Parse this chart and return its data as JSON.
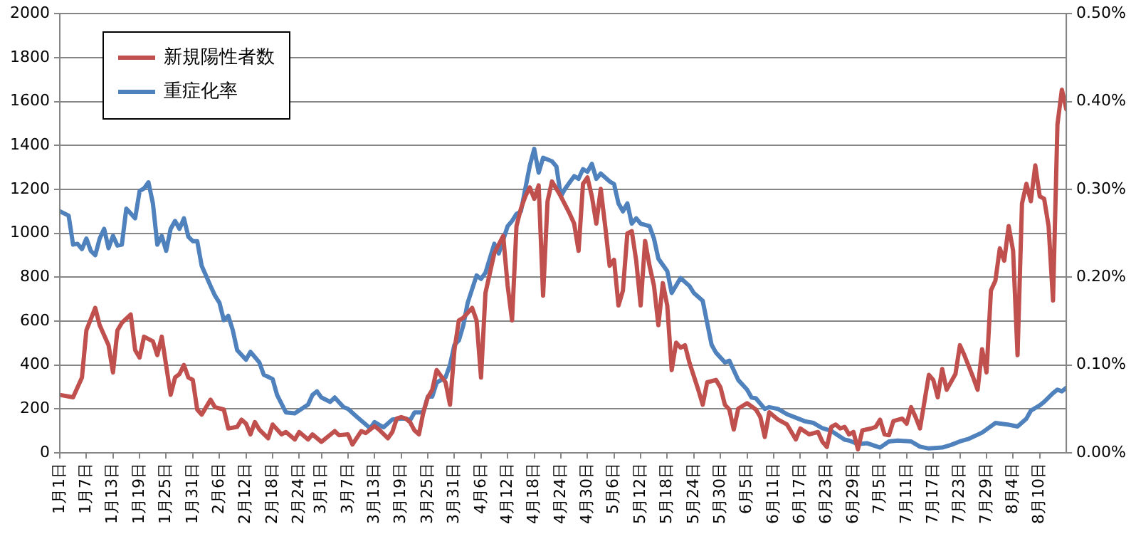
{
  "chart_data": {
    "type": "line",
    "xlim": [
      "--01-01",
      "--08-16"
    ],
    "xticks": [
      {
        "value": "--01-01",
        "label": "1月1日"
      },
      {
        "value": "--01-07",
        "label": "1月7日"
      },
      {
        "value": "--01-13",
        "label": "1月13日"
      },
      {
        "value": "--01-19",
        "label": "1月19日"
      },
      {
        "value": "--01-25",
        "label": "1月25日"
      },
      {
        "value": "--01-31",
        "label": "1月31日"
      },
      {
        "value": "--02-06",
        "label": "2月6日"
      },
      {
        "value": "--02-12",
        "label": "2月12日"
      },
      {
        "value": "--02-18",
        "label": "2月18日"
      },
      {
        "value": "--02-24",
        "label": "2月24日"
      },
      {
        "value": "--03-01",
        "label": "3月1日"
      },
      {
        "value": "--03-07",
        "label": "3月7日"
      },
      {
        "value": "--03-13",
        "label": "3月13日"
      },
      {
        "value": "--03-19",
        "label": "3月19日"
      },
      {
        "value": "--03-25",
        "label": "3月25日"
      },
      {
        "value": "--03-31",
        "label": "3月31日"
      },
      {
        "value": "--04-06",
        "label": "4月6日"
      },
      {
        "value": "--04-12",
        "label": "4月12日"
      },
      {
        "value": "--04-18",
        "label": "4月18日"
      },
      {
        "value": "--04-24",
        "label": "4月24日"
      },
      {
        "value": "--04-30",
        "label": "4月30日"
      },
      {
        "value": "--05-06",
        "label": "5月6日"
      },
      {
        "value": "--05-12",
        "label": "5月12日"
      },
      {
        "value": "--05-18",
        "label": "5月18日"
      },
      {
        "value": "--05-24",
        "label": "5月24日"
      },
      {
        "value": "--05-30",
        "label": "5月30日"
      },
      {
        "value": "--06-05",
        "label": "6月5日"
      },
      {
        "value": "--06-11",
        "label": "6月11日"
      },
      {
        "value": "--06-17",
        "label": "6月17日"
      },
      {
        "value": "--06-23",
        "label": "6月23日"
      },
      {
        "value": "--06-29",
        "label": "6月29日"
      },
      {
        "value": "--07-05",
        "label": "7月5日"
      },
      {
        "value": "--07-11",
        "label": "7月11日"
      },
      {
        "value": "--07-17",
        "label": "7月17日"
      },
      {
        "value": "--07-23",
        "label": "7月23日"
      },
      {
        "value": "--07-29",
        "label": "7月29日"
      },
      {
        "value": "--08-04",
        "label": "8月4日"
      },
      {
        "value": "--08-10",
        "label": "8月10日"
      }
    ],
    "ylim": [
      0,
      2000
    ],
    "yticks": [
      0,
      200,
      400,
      600,
      800,
      1000,
      1200,
      1400,
      1600,
      1800,
      2000
    ],
    "y2lim": [
      0,
      0.5
    ],
    "y2ticks": [
      {
        "value": 0,
        "label": "0.00%"
      },
      {
        "value": 0.1,
        "label": "0.10%"
      },
      {
        "value": 0.2,
        "label": "0.20%"
      },
      {
        "value": 0.3,
        "label": "0.30%"
      },
      {
        "value": 0.4,
        "label": "0.40%"
      },
      {
        "value": 0.5,
        "label": "0.50%"
      }
    ],
    "grid": "y",
    "legend": "top left",
    "marker": "none",
    "line_style": "solid",
    "series": [
      {
        "name": "新規陽性者数",
        "color": "#c0504d",
        "x": [
          "--01-01",
          "--01-04",
          "--01-06",
          "--01-07",
          "--01-09",
          "--01-10",
          "--01-12",
          "--01-13",
          "--01-14",
          "--01-15",
          "--01-17",
          "--01-18",
          "--01-19",
          "--01-20",
          "--01-22",
          "--01-23",
          "--01-24",
          "--01-26",
          "--01-27",
          "--01-28",
          "--01-29",
          "--01-30",
          "--01-31",
          "--02-01",
          "--02-02",
          "--02-04",
          "--02-05",
          "--02-07",
          "--02-08",
          "--02-10",
          "--02-11",
          "--02-12",
          "--02-13",
          "--02-14",
          "--02-15",
          "--02-17",
          "--02-18",
          "--02-20",
          "--02-21",
          "--02-23",
          "--02-24",
          "--02-26",
          "--02-27",
          "--03-01",
          "--03-04",
          "--03-05",
          "--03-07",
          "--03-08",
          "--03-10",
          "--03-11",
          "--03-13",
          "--03-14",
          "--03-16",
          "--03-17",
          "--03-18",
          "--03-19",
          "--03-20",
          "--03-21",
          "--03-22",
          "--03-23",
          "--03-24",
          "--03-25",
          "--03-26",
          "--03-27",
          "--03-29",
          "--03-30",
          "--03-31",
          "--04-01",
          "--04-02",
          "--04-04",
          "--04-05",
          "--04-06",
          "--04-07",
          "--04-09",
          "--04-11",
          "--04-12",
          "--04-13",
          "--04-14",
          "--04-15",
          "--04-16",
          "--04-17",
          "--04-18",
          "--04-19",
          "--04-20",
          "--04-21",
          "--04-22",
          "--04-24",
          "--04-26",
          "--04-27",
          "--04-28",
          "--04-29",
          "--04-30",
          "--05-01",
          "--05-02",
          "--05-03",
          "--05-04",
          "--05-05",
          "--05-06",
          "--05-07",
          "--05-08",
          "--05-09",
          "--05-10",
          "--05-11",
          "--05-12",
          "--05-13",
          "--05-14",
          "--05-15",
          "--05-16",
          "--05-17",
          "--05-18",
          "--05-19",
          "--05-20",
          "--05-21",
          "--05-22",
          "--05-23",
          "--05-25",
          "--05-26",
          "--05-27",
          "--05-29",
          "--05-30",
          "--05-31",
          "--06-01",
          "--06-02",
          "--06-03",
          "--06-05",
          "--06-07",
          "--06-08",
          "--06-09",
          "--06-10",
          "--06-12",
          "--06-14",
          "--06-16",
          "--06-17",
          "--06-19",
          "--06-21",
          "--06-22",
          "--06-23",
          "--06-24",
          "--06-25",
          "--06-26",
          "--06-27",
          "--06-28",
          "--06-29",
          "--06-30",
          "--07-01",
          "--07-03",
          "--07-04",
          "--07-05",
          "--07-06",
          "--07-07",
          "--07-08",
          "--07-10",
          "--07-11",
          "--07-12",
          "--07-13",
          "--07-14",
          "--07-16",
          "--07-17",
          "--07-18",
          "--07-19",
          "--07-20",
          "--07-22",
          "--07-23",
          "--07-24",
          "--07-26",
          "--07-27",
          "--07-28",
          "--07-29",
          "--07-30",
          "--07-31",
          "--08-01",
          "--08-02",
          "--08-03",
          "--08-04",
          "--08-05",
          "--08-06",
          "--08-07",
          "--08-08",
          "--08-09",
          "--08-10",
          "--08-11",
          "--08-12",
          "--08-13",
          "--08-14",
          "--08-15",
          "--08-16"
        ],
        "values": [
          264,
          253,
          343,
          558,
          660,
          581,
          490,
          366,
          558,
          592,
          630,
          468,
          434,
          529,
          508,
          445,
          529,
          264,
          343,
          359,
          400,
          343,
          332,
          197,
          174,
          242,
          208,
          197,
          111,
          118,
          151,
          133,
          84,
          140,
          106,
          66,
          129,
          84,
          95,
          61,
          95,
          61,
          84,
          50,
          99,
          80,
          84,
          38,
          99,
          90,
          122,
          106,
          66,
          95,
          156,
          163,
          156,
          140,
          102,
          84,
          185,
          253,
          287,
          377,
          321,
          219,
          468,
          603,
          615,
          660,
          603,
          343,
          728,
          909,
          988,
          762,
          603,
          1033,
          1112,
          1168,
          1209,
          1157,
          1218,
          716,
          1146,
          1236,
          1168,
          1089,
          1044,
          920,
          1225,
          1254,
          1168,
          1044,
          1202,
          1033,
          852,
          879,
          671,
          739,
          999,
          1010,
          875,
          671,
          965,
          852,
          762,
          581,
          773,
          671,
          377,
          502,
          479,
          490,
          411,
          287,
          219,
          321,
          332,
          298,
          219,
          197,
          106,
          201,
          226,
          197,
          163,
          72,
          185,
          151,
          129,
          61,
          111,
          84,
          95,
          50,
          27,
          118,
          129,
          111,
          118,
          84,
          95,
          16,
          102,
          111,
          118,
          151,
          84,
          80,
          145,
          156,
          133,
          208,
          163,
          111,
          355,
          332,
          253,
          382,
          287,
          359,
          490,
          445,
          343,
          287,
          472,
          366,
          739,
          784,
          931,
          875,
          1033,
          920,
          445,
          1135,
          1225,
          1146,
          1309,
          1168,
          1157,
          1033,
          694,
          1496,
          1654,
          1564
        ]
      },
      {
        "name": "重症化率",
        "color": "#4f81bd",
        "axis": "y2",
        "x": [
          "--01-01",
          "--01-03",
          "--01-04",
          "--01-05",
          "--01-06",
          "--01-07",
          "--01-08",
          "--01-09",
          "--01-10",
          "--01-11",
          "--01-12",
          "--01-13",
          "--01-14",
          "--01-15",
          "--01-16",
          "--01-18",
          "--01-19",
          "--01-20",
          "--01-21",
          "--01-22",
          "--01-23",
          "--01-24",
          "--01-25",
          "--01-26",
          "--01-27",
          "--01-28",
          "--01-29",
          "--01-30",
          "--01-31",
          "--02-01",
          "--02-02",
          "--02-04",
          "--02-05",
          "--02-06",
          "--02-07",
          "--02-08",
          "--02-09",
          "--02-10",
          "--02-12",
          "--02-13",
          "--02-15",
          "--02-16",
          "--02-18",
          "--02-19",
          "--02-21",
          "--02-23",
          "--02-26",
          "--02-27",
          "--02-28",
          "--03-01",
          "--03-03",
          "--03-04",
          "--03-06",
          "--03-07",
          "--03-09",
          "--03-12",
          "--03-13",
          "--03-15",
          "--03-17",
          "--03-19",
          "--03-20",
          "--03-21",
          "--03-22",
          "--03-24",
          "--03-25",
          "--03-26",
          "--03-27",
          "--03-29",
          "--03-30",
          "--03-31",
          "--04-01",
          "--04-02",
          "--04-03",
          "--04-05",
          "--04-06",
          "--04-07",
          "--04-09",
          "--04-10",
          "--04-12",
          "--04-13",
          "--04-14",
          "--04-15",
          "--04-16",
          "--04-17",
          "--04-18",
          "--04-19",
          "--04-20",
          "--04-22",
          "--04-23",
          "--04-24",
          "--04-25",
          "--04-27",
          "--04-28",
          "--04-29",
          "--04-30",
          "--05-01",
          "--05-02",
          "--05-03",
          "--05-05",
          "--05-06",
          "--05-07",
          "--05-08",
          "--05-09",
          "--05-10",
          "--05-11",
          "--05-12",
          "--05-14",
          "--05-15",
          "--05-16",
          "--05-18",
          "--05-19",
          "--05-21",
          "--05-23",
          "--05-24",
          "--05-26",
          "--05-27",
          "--05-28",
          "--05-29",
          "--05-31",
          "--06-01",
          "--06-03",
          "--06-05",
          "--06-06",
          "--06-07",
          "--06-09",
          "--06-10",
          "--06-12",
          "--06-14",
          "--06-16",
          "--06-18",
          "--06-20",
          "--06-22",
          "--06-24",
          "--06-27",
          "--06-28",
          "--06-30",
          "--07-02",
          "--07-05",
          "--07-07",
          "--07-09",
          "--07-12",
          "--07-14",
          "--07-16",
          "--07-19",
          "--07-21",
          "--07-23",
          "--07-25",
          "--07-28",
          "--07-31",
          "--08-03",
          "--08-05",
          "--08-07",
          "--08-08",
          "--08-10",
          "--08-11",
          "--08-13",
          "--08-14",
          "--08-15",
          "--08-16"
        ],
        "values": [
          0.275,
          0.27,
          0.237,
          0.238,
          0.232,
          0.244,
          0.23,
          0.225,
          0.244,
          0.255,
          0.233,
          0.247,
          0.236,
          0.237,
          0.278,
          0.267,
          0.298,
          0.301,
          0.308,
          0.284,
          0.237,
          0.247,
          0.23,
          0.255,
          0.264,
          0.255,
          0.267,
          0.246,
          0.241,
          0.241,
          0.213,
          0.19,
          0.179,
          0.171,
          0.151,
          0.156,
          0.14,
          0.117,
          0.106,
          0.115,
          0.103,
          0.089,
          0.084,
          0.066,
          0.046,
          0.045,
          0.055,
          0.066,
          0.07,
          0.063,
          0.058,
          0.063,
          0.052,
          0.05,
          0.041,
          0.028,
          0.035,
          0.029,
          0.038,
          0.039,
          0.039,
          0.037,
          0.046,
          0.046,
          0.064,
          0.064,
          0.08,
          0.086,
          0.1,
          0.123,
          0.128,
          0.145,
          0.171,
          0.202,
          0.198,
          0.205,
          0.238,
          0.227,
          0.258,
          0.264,
          0.272,
          0.275,
          0.301,
          0.327,
          0.346,
          0.319,
          0.336,
          0.332,
          0.326,
          0.292,
          0.301,
          0.315,
          0.312,
          0.323,
          0.32,
          0.329,
          0.312,
          0.318,
          0.309,
          0.306,
          0.284,
          0.275,
          0.284,
          0.261,
          0.267,
          0.261,
          0.258,
          0.244,
          0.221,
          0.207,
          0.182,
          0.199,
          0.19,
          0.182,
          0.173,
          0.148,
          0.123,
          0.114,
          0.103,
          0.105,
          0.083,
          0.072,
          0.063,
          0.062,
          0.05,
          0.052,
          0.05,
          0.044,
          0.04,
          0.036,
          0.034,
          0.028,
          0.025,
          0.015,
          0.014,
          0.01,
          0.011,
          0.006,
          0.013,
          0.014,
          0.013,
          0.007,
          0.005,
          0.006,
          0.009,
          0.013,
          0.016,
          0.023,
          0.034,
          0.032,
          0.03,
          0.039,
          0.048,
          0.054,
          0.058,
          0.068,
          0.072,
          0.07,
          0.074
        ]
      }
    ]
  }
}
